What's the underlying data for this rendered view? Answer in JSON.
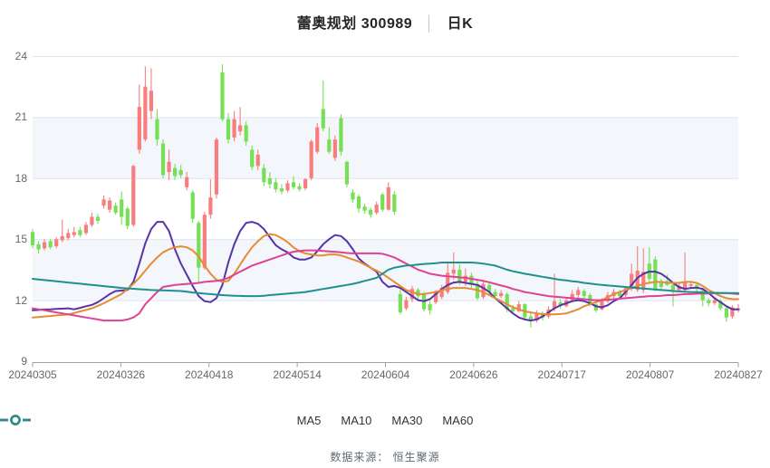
{
  "header": {
    "title_stock": "蕾奥规划 300989",
    "title_divider": "│",
    "title_period": "日K"
  },
  "footer": {
    "text": "数据来源： 恒生聚源"
  },
  "legend": {
    "items": [
      {
        "label": "MA5",
        "color": "#5733A8"
      },
      {
        "label": "MA10",
        "color": "#E78B32"
      },
      {
        "label": "MA30",
        "color": "#DD4392"
      },
      {
        "label": "MA60",
        "color": "#20908F"
      }
    ]
  },
  "style": {
    "up_color": "#F87E7E",
    "down_color": "#77DF55",
    "band_color": "#F3F6FB",
    "grid_color": "#DFE4F0",
    "axis_color": "#9AA0AA",
    "tick_label_color": "#666666",
    "shaded_bands": [
      [
        21,
        18
      ],
      [
        15,
        12
      ]
    ]
  },
  "chart_data": {
    "type": "candlestick",
    "title": "蕾奥规划 300989 日K",
    "ylabel": "",
    "xlabel": "",
    "ylim": [
      9,
      24
    ],
    "y_ticks": [
      24,
      21,
      18,
      15,
      12,
      9
    ],
    "x_tick_labels": [
      "20240305",
      "20240326",
      "20240418",
      "20240514",
      "20240604",
      "20240626",
      "20240717",
      "20240807",
      "20240827"
    ],
    "legend_position": "bottom",
    "grid": true,
    "up_means": "red candles rise, green candles fall",
    "candles_format": [
      "open",
      "high",
      "low",
      "close"
    ],
    "candles": [
      [
        15.35,
        15.5,
        14.55,
        14.7
      ],
      [
        14.75,
        14.9,
        14.3,
        14.5
      ],
      [
        14.55,
        15.0,
        14.45,
        14.85
      ],
      [
        14.9,
        15.0,
        14.5,
        14.6
      ],
      [
        14.65,
        15.1,
        14.55,
        15.0
      ],
      [
        14.95,
        15.95,
        14.85,
        15.15
      ],
      [
        15.05,
        15.5,
        14.95,
        15.3
      ],
      [
        15.2,
        15.6,
        15.1,
        15.35
      ],
      [
        15.45,
        15.6,
        15.1,
        15.2
      ],
      [
        15.3,
        15.85,
        15.2,
        15.7
      ],
      [
        15.7,
        16.3,
        15.6,
        16.1
      ],
      [
        16.1,
        16.25,
        15.75,
        15.9
      ],
      [
        16.65,
        17.15,
        16.5,
        16.95
      ],
      [
        16.45,
        17.05,
        16.3,
        16.9
      ],
      [
        16.65,
        16.8,
        16.2,
        16.3
      ],
      [
        16.95,
        17.35,
        15.7,
        16.1
      ],
      [
        16.5,
        16.6,
        15.5,
        15.65
      ],
      [
        15.7,
        18.65,
        15.6,
        18.6
      ],
      [
        19.4,
        22.6,
        19.2,
        21.5
      ],
      [
        19.9,
        23.5,
        19.8,
        22.5
      ],
      [
        21.3,
        23.4,
        20.9,
        22.3
      ],
      [
        20.9,
        21.4,
        19.6,
        19.9
      ],
      [
        19.7,
        19.9,
        18.0,
        18.15
      ],
      [
        18.3,
        19.4,
        17.9,
        18.8
      ],
      [
        18.5,
        18.7,
        17.9,
        18.1
      ],
      [
        18.4,
        18.65,
        18.0,
        18.15
      ],
      [
        17.55,
        18.3,
        17.4,
        18.05
      ],
      [
        17.3,
        17.4,
        15.8,
        16.0
      ],
      [
        15.8,
        15.9,
        12.9,
        13.6
      ],
      [
        13.6,
        16.35,
        13.5,
        16.2
      ],
      [
        16.2,
        17.95,
        16.0,
        17.05
      ],
      [
        17.2,
        20.0,
        17.0,
        19.9
      ],
      [
        23.2,
        23.6,
        20.8,
        20.9
      ],
      [
        20.9,
        21.2,
        19.7,
        19.9
      ],
      [
        20.0,
        21.3,
        19.8,
        20.9
      ],
      [
        20.3,
        21.5,
        20.1,
        20.6
      ],
      [
        20.6,
        20.8,
        19.6,
        19.8
      ],
      [
        19.4,
        19.6,
        18.4,
        18.55
      ],
      [
        18.6,
        19.4,
        18.4,
        19.15
      ],
      [
        18.5,
        18.7,
        17.6,
        17.8
      ],
      [
        18.0,
        18.3,
        17.5,
        17.7
      ],
      [
        17.8,
        18.0,
        17.3,
        17.45
      ],
      [
        17.5,
        17.7,
        17.2,
        17.35
      ],
      [
        17.4,
        17.9,
        17.3,
        17.75
      ],
      [
        17.8,
        18.1,
        17.45,
        17.55
      ],
      [
        17.6,
        17.75,
        17.35,
        17.45
      ],
      [
        17.5,
        18.0,
        17.4,
        17.95
      ],
      [
        18.0,
        19.9,
        17.9,
        19.8
      ],
      [
        19.3,
        20.7,
        19.2,
        20.5
      ],
      [
        21.4,
        22.8,
        20.3,
        20.45
      ],
      [
        19.9,
        20.5,
        19.2,
        19.3
      ],
      [
        19.0,
        20.1,
        18.85,
        19.9
      ],
      [
        20.95,
        21.15,
        19.1,
        19.3
      ],
      [
        18.8,
        18.85,
        17.55,
        17.7
      ],
      [
        17.3,
        17.45,
        16.8,
        16.95
      ],
      [
        17.1,
        17.2,
        16.3,
        16.5
      ],
      [
        16.6,
        16.75,
        16.25,
        16.4
      ],
      [
        16.45,
        16.55,
        16.05,
        16.2
      ],
      [
        16.3,
        16.85,
        16.2,
        16.7
      ],
      [
        17.2,
        17.3,
        16.35,
        16.45
      ],
      [
        16.45,
        17.8,
        16.4,
        17.55
      ],
      [
        17.2,
        17.35,
        16.2,
        16.35
      ],
      [
        12.3,
        12.55,
        11.3,
        11.4
      ],
      [
        11.6,
        12.15,
        11.5,
        12.0
      ],
      [
        12.05,
        12.7,
        11.9,
        12.55
      ],
      [
        12.5,
        12.6,
        12.0,
        12.2
      ],
      [
        12.3,
        12.4,
        11.45,
        11.55
      ],
      [
        11.8,
        11.95,
        11.3,
        11.5
      ],
      [
        11.9,
        12.5,
        11.8,
        12.45
      ],
      [
        12.15,
        12.75,
        12.05,
        12.6
      ],
      [
        12.4,
        13.9,
        12.3,
        13.35
      ],
      [
        13.3,
        14.35,
        13.0,
        13.5
      ],
      [
        13.5,
        13.75,
        12.75,
        12.9
      ],
      [
        12.9,
        13.55,
        12.7,
        13.2
      ],
      [
        13.2,
        13.35,
        12.6,
        12.75
      ],
      [
        12.8,
        12.95,
        12.0,
        12.1
      ],
      [
        12.15,
        13.0,
        12.05,
        12.8
      ],
      [
        12.75,
        12.85,
        12.3,
        12.4
      ],
      [
        12.4,
        12.55,
        12.05,
        12.2
      ],
      [
        12.2,
        12.5,
        12.1,
        12.35
      ],
      [
        12.3,
        12.4,
        11.4,
        11.55
      ],
      [
        11.6,
        11.75,
        11.35,
        11.45
      ],
      [
        11.45,
        11.95,
        11.4,
        11.8
      ],
      [
        11.8,
        11.85,
        11.05,
        11.15
      ],
      [
        11.2,
        11.4,
        10.65,
        11.0
      ],
      [
        11.0,
        11.5,
        10.9,
        11.35
      ],
      [
        11.35,
        11.45,
        11.0,
        11.15
      ],
      [
        11.2,
        11.7,
        11.1,
        11.55
      ],
      [
        11.6,
        13.3,
        11.45,
        11.95
      ],
      [
        11.9,
        12.05,
        11.6,
        11.7
      ],
      [
        11.7,
        12.15,
        11.65,
        12.0
      ],
      [
        12.0,
        12.5,
        11.9,
        12.3
      ],
      [
        12.25,
        12.65,
        12.1,
        12.5
      ],
      [
        12.45,
        12.55,
        12.1,
        12.2
      ],
      [
        12.25,
        12.35,
        11.7,
        11.8
      ],
      [
        11.8,
        11.9,
        11.4,
        11.5
      ],
      [
        11.55,
        12.1,
        11.5,
        11.95
      ],
      [
        11.95,
        12.4,
        11.85,
        12.25
      ],
      [
        12.2,
        12.55,
        12.1,
        12.4
      ],
      [
        12.4,
        12.5,
        12.05,
        12.2
      ],
      [
        12.25,
        12.7,
        12.15,
        12.6
      ],
      [
        12.55,
        13.8,
        12.45,
        13.3
      ],
      [
        12.5,
        14.65,
        12.4,
        13.45
      ],
      [
        12.5,
        14.55,
        12.35,
        13.4
      ],
      [
        13.8,
        14.6,
        12.9,
        13.05
      ],
      [
        14.0,
        14.15,
        12.45,
        12.55
      ],
      [
        12.9,
        13.05,
        12.5,
        12.65
      ],
      [
        12.95,
        13.25,
        12.7,
        12.75
      ],
      [
        12.75,
        12.85,
        11.7,
        12.5
      ],
      [
        12.5,
        12.85,
        12.4,
        12.7
      ],
      [
        12.5,
        14.35,
        12.45,
        12.9
      ],
      [
        12.7,
        12.95,
        12.55,
        12.78
      ],
      [
        12.75,
        12.85,
        12.45,
        12.55
      ],
      [
        12.5,
        12.6,
        11.7,
        12.0
      ],
      [
        12.0,
        12.1,
        11.7,
        11.85
      ],
      [
        11.85,
        12.15,
        11.75,
        12.0
      ],
      [
        11.95,
        12.05,
        11.5,
        11.6
      ],
      [
        11.6,
        11.7,
        10.95,
        11.15
      ],
      [
        11.2,
        11.75,
        11.1,
        11.65
      ],
      [
        11.5,
        11.8,
        11.4,
        11.6
      ]
    ],
    "series": [
      {
        "name": "MA5",
        "color": "#5733A8",
        "values": [
          11.5,
          11.52,
          11.54,
          11.55,
          11.57,
          11.58,
          11.6,
          11.55,
          11.62,
          11.7,
          11.77,
          11.9,
          12.1,
          12.3,
          12.45,
          12.47,
          12.5,
          12.9,
          13.8,
          14.8,
          15.5,
          15.85,
          15.85,
          15.4,
          14.5,
          13.8,
          13.25,
          12.7,
          12.2,
          11.95,
          11.9,
          12.1,
          12.75,
          13.85,
          14.75,
          15.4,
          15.8,
          15.85,
          15.75,
          15.5,
          15.1,
          14.7,
          14.5,
          14.35,
          14.1,
          14.0,
          14.0,
          14.1,
          14.4,
          14.75,
          15.0,
          15.2,
          15.15,
          14.9,
          14.5,
          14.05,
          13.8,
          13.6,
          13.4,
          12.9,
          12.65,
          12.7,
          12.6,
          12.4,
          12.2,
          12.0,
          11.95,
          12.05,
          12.3,
          12.55,
          12.75,
          12.87,
          12.9,
          12.85,
          12.8,
          12.75,
          12.6,
          12.4,
          12.1,
          11.85,
          11.6,
          11.35,
          11.15,
          11.05,
          11.0,
          11.05,
          11.2,
          11.4,
          11.6,
          11.75,
          11.85,
          11.95,
          12.0,
          11.95,
          11.85,
          11.7,
          11.65,
          11.75,
          11.95,
          12.1,
          12.4,
          12.75,
          13.1,
          13.3,
          13.4,
          13.4,
          13.3,
          13.1,
          12.85,
          12.65,
          12.55,
          12.6,
          12.62,
          12.55,
          12.35,
          12.1,
          11.9,
          11.7,
          11.55,
          11.55
        ]
      },
      {
        "name": "MA10",
        "color": "#E78B32",
        "values": [
          11.15,
          11.17,
          11.2,
          11.22,
          11.25,
          11.27,
          11.3,
          11.37,
          11.45,
          11.52,
          11.6,
          11.72,
          11.85,
          12.0,
          12.15,
          12.3,
          12.55,
          12.8,
          13.1,
          13.45,
          13.8,
          14.1,
          14.35,
          14.5,
          14.6,
          14.65,
          14.6,
          14.45,
          14.15,
          13.7,
          13.3,
          13.0,
          12.9,
          12.95,
          13.3,
          13.75,
          14.2,
          14.6,
          14.9,
          15.15,
          15.25,
          15.2,
          15.05,
          14.85,
          14.6,
          14.4,
          14.3,
          14.25,
          14.2,
          14.2,
          14.25,
          14.25,
          14.2,
          14.1,
          14.0,
          13.9,
          13.75,
          13.6,
          13.45,
          13.3,
          13.1,
          12.9,
          12.7,
          12.5,
          12.4,
          12.3,
          12.3,
          12.35,
          12.4,
          12.5,
          12.55,
          12.6,
          12.6,
          12.6,
          12.55,
          12.5,
          12.4,
          12.25,
          12.1,
          11.95,
          11.8,
          11.65,
          11.55,
          11.45,
          11.4,
          11.35,
          11.32,
          11.3,
          11.3,
          11.32,
          11.35,
          11.45,
          11.55,
          11.7,
          11.8,
          11.9,
          12.0,
          12.15,
          12.3,
          12.4,
          12.5,
          12.6,
          12.7,
          12.8,
          12.85,
          12.9,
          12.9,
          12.85,
          12.85,
          12.85,
          12.9,
          12.9,
          12.85,
          12.7,
          12.5,
          12.35,
          12.2,
          12.1,
          12.05,
          12.05
        ]
      },
      {
        "name": "MA30",
        "color": "#DD4392",
        "values": [
          11.6,
          11.55,
          11.5,
          11.45,
          11.4,
          11.35,
          11.3,
          11.25,
          11.2,
          11.15,
          11.1,
          11.05,
          11.0,
          11.0,
          11.0,
          11.0,
          11.05,
          11.15,
          11.35,
          11.8,
          12.1,
          12.4,
          12.65,
          12.7,
          12.75,
          12.77,
          12.8,
          12.82,
          12.85,
          12.9,
          12.92,
          12.95,
          13.0,
          13.1,
          13.25,
          13.4,
          13.55,
          13.7,
          13.8,
          13.9,
          14.0,
          14.1,
          14.2,
          14.3,
          14.38,
          14.42,
          14.45,
          14.45,
          14.45,
          14.42,
          14.4,
          14.38,
          14.35,
          14.32,
          14.3,
          14.3,
          14.3,
          14.3,
          14.3,
          14.28,
          14.2,
          14.1,
          13.95,
          13.8,
          13.65,
          13.5,
          13.4,
          13.3,
          13.25,
          13.2,
          13.17,
          13.15,
          13.12,
          13.1,
          13.05,
          13.0,
          12.95,
          12.88,
          12.8,
          12.72,
          12.65,
          12.55,
          12.48,
          12.4,
          12.35,
          12.3,
          12.25,
          12.2,
          12.17,
          12.15,
          12.12,
          12.1,
          12.07,
          12.05,
          12.02,
          12.0,
          12.0,
          12.02,
          12.05,
          12.07,
          12.1,
          12.12,
          12.15,
          12.17,
          12.2,
          12.2,
          12.22,
          12.25,
          12.25,
          12.27,
          12.3,
          12.3,
          12.32,
          12.32,
          12.33,
          12.35,
          12.35,
          12.35,
          12.33,
          12.3
        ]
      },
      {
        "name": "MA60",
        "color": "#20908F",
        "values": [
          13.05,
          13.02,
          12.99,
          12.96,
          12.93,
          12.9,
          12.87,
          12.84,
          12.81,
          12.78,
          12.75,
          12.72,
          12.69,
          12.66,
          12.63,
          12.6,
          12.58,
          12.56,
          12.54,
          12.52,
          12.5,
          12.49,
          12.48,
          12.47,
          12.46,
          12.45,
          12.42,
          12.38,
          12.35,
          12.32,
          12.3,
          12.27,
          12.25,
          12.23,
          12.22,
          12.21,
          12.2,
          12.2,
          12.2,
          12.22,
          12.25,
          12.27,
          12.3,
          12.32,
          12.35,
          12.37,
          12.4,
          12.45,
          12.5,
          12.55,
          12.6,
          12.65,
          12.7,
          12.75,
          12.8,
          12.87,
          12.95,
          13.02,
          13.1,
          13.3,
          13.5,
          13.6,
          13.65,
          13.7,
          13.72,
          13.75,
          13.78,
          13.8,
          13.82,
          13.85,
          13.85,
          13.85,
          13.85,
          13.85,
          13.85,
          13.83,
          13.8,
          13.75,
          13.7,
          13.6,
          13.5,
          13.42,
          13.36,
          13.3,
          13.25,
          13.2,
          13.15,
          13.1,
          13.05,
          13.0,
          12.97,
          12.93,
          12.9,
          12.85,
          12.82,
          12.78,
          12.75,
          12.72,
          12.7,
          12.67,
          12.65,
          12.62,
          12.6,
          12.57,
          12.55,
          12.52,
          12.5,
          12.48,
          12.45,
          12.43,
          12.42,
          12.4,
          12.4,
          12.38,
          12.37,
          12.36,
          12.35,
          12.35,
          12.35,
          12.35
        ]
      }
    ]
  }
}
